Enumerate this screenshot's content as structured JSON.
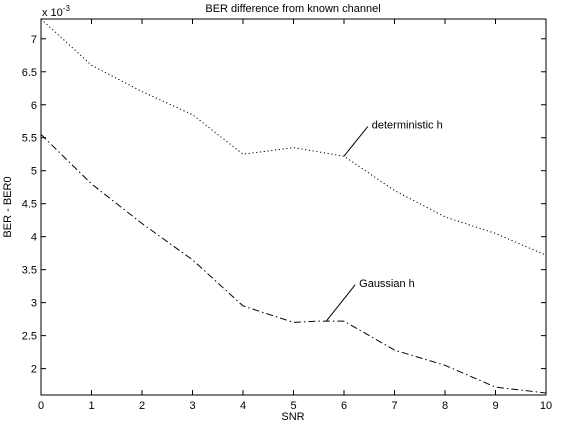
{
  "chart_data": {
    "type": "line",
    "title": "BER difference from known channel",
    "xlabel": "SNR",
    "ylabel": "BER - BER0",
    "y_multiplier_label": "x 10",
    "y_multiplier_exponent": "-3",
    "xlim": [
      0,
      10
    ],
    "ylim": [
      1.6,
      7.3
    ],
    "x_ticks": [
      0,
      1,
      2,
      3,
      4,
      5,
      6,
      7,
      8,
      9,
      10
    ],
    "x_tick_labels": [
      "0",
      "1",
      "2",
      "3",
      "4",
      "5",
      "6",
      "7",
      "8",
      "9",
      "10"
    ],
    "y_ticks": [
      2,
      2.5,
      3,
      3.5,
      4,
      4.5,
      5,
      5.5,
      6,
      6.5,
      7
    ],
    "y_tick_labels": [
      "2",
      "2.5",
      "3",
      "3.5",
      "4",
      "4.5",
      "5",
      "5.5",
      "6",
      "6.5",
      "7"
    ],
    "grid": false,
    "series": [
      {
        "name": "deterministic h",
        "style": "dotted",
        "color": "#000000",
        "x": [
          0,
          1,
          2,
          3,
          4,
          5,
          6,
          7,
          8,
          9,
          10
        ],
        "values": [
          7.3,
          6.6,
          6.2,
          5.85,
          5.25,
          5.35,
          5.22,
          4.7,
          4.3,
          4.05,
          3.72
        ]
      },
      {
        "name": "Gaussian h",
        "style": "dashdot",
        "color": "#000000",
        "x": [
          0,
          1,
          2,
          3,
          4,
          5,
          5.5,
          6,
          7,
          8,
          9,
          10
        ],
        "values": [
          5.55,
          4.8,
          4.2,
          3.65,
          2.95,
          2.7,
          2.72,
          2.72,
          2.28,
          2.05,
          1.72,
          1.63
        ]
      }
    ],
    "annotations": [
      {
        "text": "deterministic h",
        "series": 0,
        "point_x": 6,
        "point_y": 5.22,
        "label_x": 6.55,
        "label_y": 5.7
      },
      {
        "text": "Gaussian h",
        "series": 1,
        "point_x": 5.65,
        "point_y": 2.72,
        "label_x": 6.3,
        "label_y": 3.3
      }
    ]
  }
}
